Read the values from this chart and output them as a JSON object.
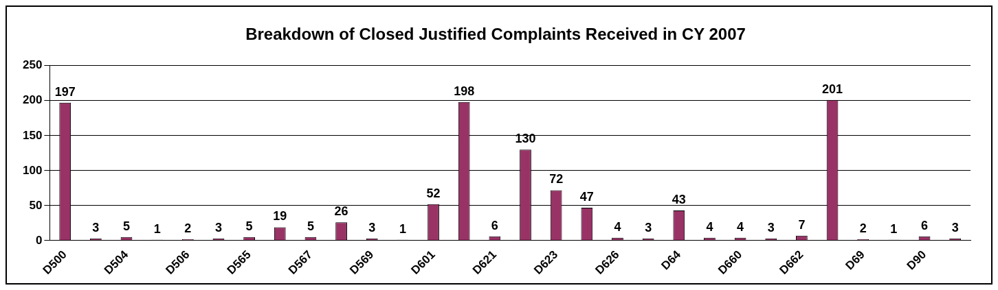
{
  "chart_data": {
    "type": "bar",
    "title": "Breakdown of Closed Justified Complaints Received in CY 2007",
    "categories": [
      "D500",
      null,
      "D504",
      null,
      "D506",
      null,
      "D565",
      null,
      "D567",
      null,
      "D569",
      null,
      "D601",
      null,
      "D621",
      null,
      "D623",
      null,
      "D626",
      null,
      "D64",
      null,
      "D660",
      null,
      "D662",
      null,
      "D69",
      null,
      "D90",
      null
    ],
    "values": [
      197,
      3,
      5,
      1,
      2,
      3,
      5,
      19,
      5,
      26,
      3,
      1,
      52,
      198,
      6,
      130,
      72,
      47,
      4,
      3,
      43,
      4,
      4,
      3,
      7,
      201,
      2,
      1,
      6,
      3
    ],
    "color": "#993366",
    "ylim": [
      0,
      250
    ],
    "yticks": [
      0,
      50,
      100,
      150,
      200,
      250
    ],
    "grid": "y",
    "legend": false,
    "data_labels": true
  }
}
